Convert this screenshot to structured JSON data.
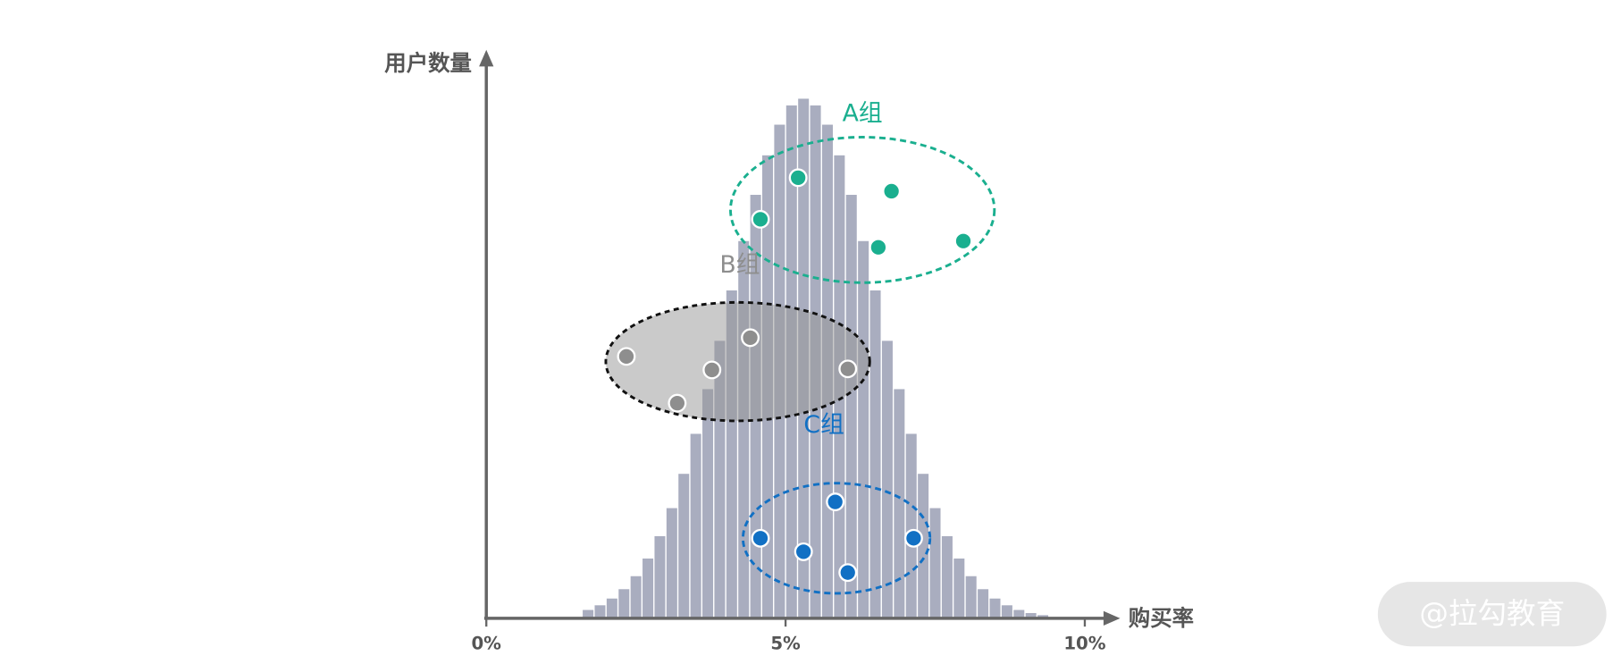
{
  "chart_data": {
    "type": "histogram",
    "y_label": "用户数量",
    "x_label": "购买率",
    "watermark": "@拉勾教育",
    "bins": [
      1.6,
      1.8,
      2.0,
      2.2,
      2.4,
      2.6,
      2.8,
      3.0,
      3.2,
      3.4,
      3.6,
      3.8,
      4.0,
      4.2,
      4.4,
      4.6,
      4.8,
      5.0,
      5.2,
      5.4,
      5.6,
      5.8,
      6.0,
      6.2,
      6.4,
      6.6,
      6.8,
      7.0,
      7.2,
      7.4,
      7.6,
      7.8,
      8.0,
      8.2,
      8.4,
      8.6,
      8.8,
      9.0,
      9.2,
      9.4
    ],
    "counts": [
      1.6,
      2.5,
      3.8,
      5.6,
      8.1,
      11.5,
      15.8,
      21.2,
      27.8,
      35.5,
      44.1,
      53.4,
      63.1,
      72.6,
      81.5,
      89.1,
      95.0,
      98.7,
      100,
      98.7,
      95.0,
      89.1,
      81.5,
      72.6,
      63.1,
      53.4,
      44.1,
      35.5,
      27.8,
      21.2,
      15.8,
      11.5,
      8.1,
      5.6,
      3.8,
      2.5,
      1.6,
      1.0,
      0.6
    ],
    "color": "#a9adbf",
    "xlim": [
      0,
      10
    ],
    "ylim": [
      0,
      100
    ],
    "xticks": [
      {
        "value": 0,
        "label": "0%"
      },
      {
        "value": 5,
        "label": "5%"
      },
      {
        "value": 10,
        "label": "10%"
      }
    ],
    "series": [
      {
        "name": "A组",
        "color": "#1aaf8f",
        "x": [
          4.58,
          5.21,
          6.77,
          6.55,
          7.97
        ],
        "values": [
          76.8,
          84.8,
          82.2,
          71.4,
          72.6
        ]
      },
      {
        "name": "B组",
        "color": "#8e8e8e",
        "x": [
          2.34,
          3.19,
          3.77,
          4.41,
          6.04
        ],
        "values": [
          50.4,
          41.4,
          47.8,
          54.0,
          48.0
        ]
      },
      {
        "name": "C组",
        "color": "#1170c4",
        "x": [
          4.58,
          5.3,
          5.83,
          6.04,
          7.14
        ],
        "values": [
          15.4,
          12.8,
          22.4,
          8.8,
          15.4
        ]
      }
    ]
  }
}
